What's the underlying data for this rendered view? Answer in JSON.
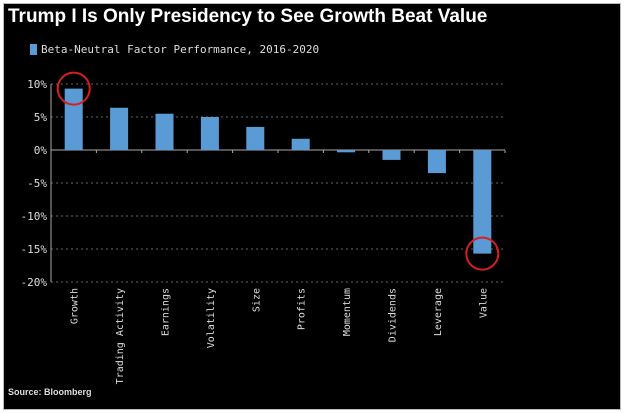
{
  "chart_data": {
    "type": "bar",
    "title": "Trump I Is Only Presidency to See Growth Beat Value",
    "legend": "Beta-Neutral Factor Performance, 2016-2020",
    "source": "Source: Bloomberg",
    "categories": [
      "Growth",
      "Trading Activity",
      "Earnings",
      "Volatility",
      "Size",
      "Profits",
      "Momentum",
      "Dividends",
      "Leverage",
      "Value"
    ],
    "values": [
      9.3,
      6.4,
      5.5,
      5.0,
      3.5,
      1.7,
      -0.35,
      -1.5,
      -3.5,
      -15.7
    ],
    "ylim": [
      -20,
      10
    ],
    "yticks": [
      10,
      5,
      0,
      -5,
      -10,
      -15,
      -20
    ],
    "ytick_labels": [
      "10%",
      "5%",
      "0%",
      "-5%",
      "-10%",
      "-15%",
      "-20%"
    ],
    "grid": true,
    "highlighted": [
      "Growth",
      "Value"
    ],
    "colors": {
      "bar": "#5b9bd5",
      "highlight": "#d62020",
      "grid": "#666666"
    }
  }
}
